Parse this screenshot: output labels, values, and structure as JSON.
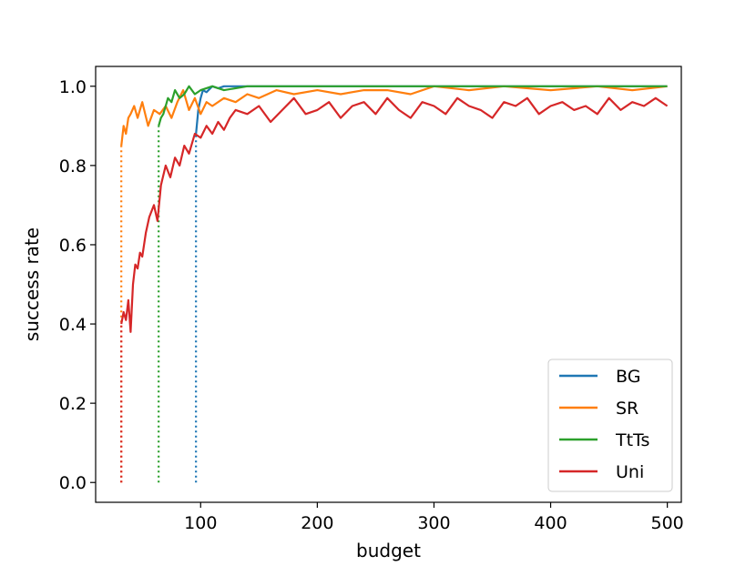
{
  "chart_data": {
    "type": "line",
    "xlabel": "budget",
    "ylabel": "success rate",
    "xlim": [
      10,
      512
    ],
    "ylim": [
      -0.05,
      1.05
    ],
    "x_ticks": [
      100,
      200,
      300,
      400,
      500
    ],
    "y_ticks": [
      0.0,
      0.2,
      0.4,
      0.6,
      0.8,
      1.0
    ],
    "x_tick_labels": [
      "100",
      "200",
      "300",
      "400",
      "500"
    ],
    "y_tick_labels": [
      "0.0",
      "0.2",
      "0.4",
      "0.6",
      "0.8",
      "1.0"
    ],
    "grid": false,
    "legend_position": "lower-right",
    "series": [
      {
        "name": "BG",
        "color": "#1f77b4",
        "start_budget": 96,
        "x": [
          96,
          98,
          100,
          102,
          105,
          110,
          115,
          120,
          130,
          150,
          200,
          300,
          400,
          500
        ],
        "y": [
          0.88,
          0.94,
          0.97,
          0.99,
          0.985,
          1.0,
          0.995,
          1.0,
          1.0,
          1.0,
          1.0,
          1.0,
          1.0,
          1.0
        ]
      },
      {
        "name": "SR",
        "color": "#ff7f0e",
        "start_budget": 32,
        "x": [
          32,
          34,
          36,
          38,
          40,
          43,
          46,
          50,
          55,
          60,
          65,
          70,
          75,
          80,
          85,
          90,
          95,
          100,
          105,
          110,
          120,
          130,
          140,
          150,
          165,
          180,
          200,
          220,
          240,
          260,
          280,
          300,
          330,
          360,
          400,
          440,
          470,
          500
        ],
        "y": [
          0.85,
          0.9,
          0.88,
          0.92,
          0.93,
          0.95,
          0.92,
          0.96,
          0.9,
          0.94,
          0.93,
          0.95,
          0.92,
          0.96,
          0.99,
          0.94,
          0.97,
          0.93,
          0.96,
          0.95,
          0.97,
          0.96,
          0.98,
          0.97,
          0.99,
          0.98,
          0.99,
          0.98,
          0.99,
          0.99,
          0.98,
          1.0,
          0.99,
          1.0,
          0.99,
          1.0,
          0.99,
          1.0
        ]
      },
      {
        "name": "TtTs",
        "color": "#2ca02c",
        "start_budget": 64,
        "x": [
          64,
          66,
          68,
          70,
          72,
          75,
          78,
          82,
          86,
          90,
          95,
          100,
          110,
          120,
          140,
          160,
          200,
          250,
          300,
          400,
          500
        ],
        "y": [
          0.9,
          0.92,
          0.93,
          0.95,
          0.97,
          0.96,
          0.99,
          0.97,
          0.98,
          1.0,
          0.98,
          0.99,
          1.0,
          0.99,
          1.0,
          1.0,
          1.0,
          1.0,
          1.0,
          1.0,
          1.0
        ]
      },
      {
        "name": "Uni",
        "color": "#d62728",
        "start_budget": 32,
        "x": [
          32,
          34,
          36,
          38,
          40,
          42,
          44,
          46,
          48,
          50,
          53,
          56,
          60,
          63,
          66,
          70,
          74,
          78,
          82,
          86,
          90,
          95,
          100,
          105,
          110,
          115,
          120,
          125,
          130,
          140,
          150,
          160,
          170,
          180,
          190,
          200,
          210,
          220,
          230,
          240,
          250,
          260,
          270,
          280,
          290,
          300,
          310,
          320,
          330,
          340,
          350,
          360,
          370,
          380,
          390,
          400,
          410,
          420,
          430,
          440,
          450,
          460,
          470,
          480,
          490,
          500
        ],
        "y": [
          0.4,
          0.43,
          0.41,
          0.46,
          0.38,
          0.5,
          0.55,
          0.54,
          0.58,
          0.57,
          0.63,
          0.67,
          0.7,
          0.66,
          0.75,
          0.8,
          0.77,
          0.82,
          0.8,
          0.85,
          0.83,
          0.88,
          0.87,
          0.9,
          0.88,
          0.91,
          0.89,
          0.92,
          0.94,
          0.93,
          0.95,
          0.91,
          0.94,
          0.97,
          0.93,
          0.94,
          0.96,
          0.92,
          0.95,
          0.96,
          0.93,
          0.97,
          0.94,
          0.92,
          0.96,
          0.95,
          0.93,
          0.97,
          0.95,
          0.94,
          0.92,
          0.96,
          0.95,
          0.97,
          0.93,
          0.95,
          0.96,
          0.94,
          0.95,
          0.93,
          0.97,
          0.94,
          0.96,
          0.95,
          0.97,
          0.95
        ]
      }
    ]
  }
}
